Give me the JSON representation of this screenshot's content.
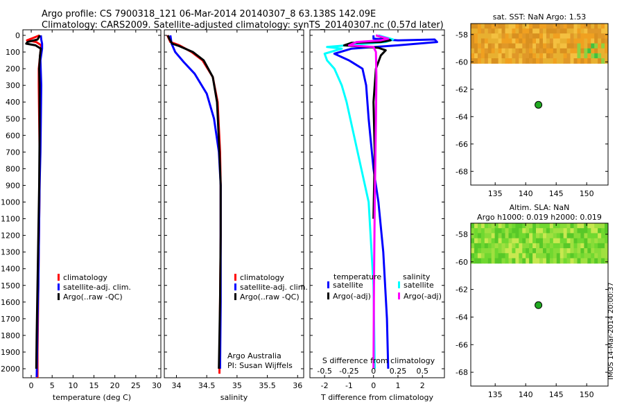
{
  "header": {
    "line1": "Argo profile: CS 7900318_121 06-Mar-2014 20140307_8 63.138S 142.09E",
    "line2": "Climatology: CARS2009. Satellite-adjusted climatology: synTS_20140307.nc (0.57d later)"
  },
  "side_label": "IMOS 14-Mar-2014 20:00:37",
  "colors": {
    "climatology": "#ff0000",
    "satellite": "#0000ff",
    "argo": "#000000",
    "satellite_salinity": "#00ffff",
    "argo_salinity": "#ff00ff",
    "sst_map": "#e0a020",
    "sla_map": "#70d830",
    "marker": "#22aa22"
  },
  "chart_data": [
    {
      "type": "line",
      "id": "temperature",
      "xlabel": "temperature (deg C)",
      "xlim": [
        -2,
        31
      ],
      "xticks": [
        0,
        5,
        10,
        15,
        20,
        25,
        30
      ],
      "ylim": [
        0,
        2080
      ],
      "yticks": [
        0,
        100,
        200,
        300,
        400,
        500,
        600,
        700,
        800,
        900,
        1000,
        1100,
        1200,
        1300,
        1400,
        1500,
        1600,
        1700,
        1800,
        1900,
        2000
      ],
      "legend": [
        "climatology",
        "satellite-adj. clim.",
        "Argo(..raw -QC)"
      ],
      "series": [
        {
          "name": "climatology",
          "color_key": "climatology",
          "points": [
            [
              1.5,
              2080
            ],
            [
              1.5,
              1900
            ],
            [
              1.6,
              1700
            ],
            [
              1.7,
              1500
            ],
            [
              1.8,
              1300
            ],
            [
              1.9,
              1100
            ],
            [
              2.0,
              900
            ],
            [
              2.0,
              700
            ],
            [
              1.9,
              500
            ],
            [
              1.8,
              300
            ],
            [
              1.8,
              200
            ],
            [
              2.2,
              100
            ],
            [
              2.4,
              60
            ],
            [
              1.2,
              40
            ],
            [
              -1.0,
              30
            ],
            [
              0.5,
              15
            ],
            [
              2.0,
              0
            ]
          ]
        },
        {
          "name": "satellite-adj. clim.",
          "color_key": "satellite",
          "points": [
            [
              1.3,
              2050
            ],
            [
              1.4,
              1900
            ],
            [
              1.5,
              1700
            ],
            [
              1.7,
              1500
            ],
            [
              1.8,
              1300
            ],
            [
              1.9,
              1100
            ],
            [
              2.0,
              900
            ],
            [
              2.2,
              700
            ],
            [
              2.3,
              500
            ],
            [
              2.4,
              300
            ],
            [
              2.2,
              150
            ],
            [
              2.6,
              80
            ],
            [
              2.6,
              50
            ],
            [
              2.4,
              25
            ],
            [
              2.3,
              0
            ]
          ]
        },
        {
          "name": "Argo(..raw -QC)",
          "color_key": "argo",
          "points": [
            [
              1.2,
              2000
            ],
            [
              1.3,
              1800
            ],
            [
              1.5,
              1500
            ],
            [
              1.7,
              1200
            ],
            [
              1.9,
              900
            ],
            [
              2.0,
              600
            ],
            [
              2.0,
              300
            ],
            [
              1.9,
              200
            ],
            [
              2.1,
              120
            ],
            [
              2.3,
              80
            ],
            [
              1.0,
              60
            ],
            [
              -1.2,
              50
            ],
            [
              -0.9,
              40
            ],
            [
              1.5,
              25
            ],
            [
              2.1,
              0
            ]
          ]
        }
      ]
    },
    {
      "type": "line",
      "id": "salinity",
      "xlabel": "salinity",
      "xlim": [
        33.8,
        36.1
      ],
      "xticks": [
        34,
        34.5,
        35,
        35.5,
        36
      ],
      "ylim": [
        0,
        2080
      ],
      "legend": [
        "climatology",
        "satellite-adj. clim.",
        "Argo(..raw -QC)"
      ],
      "annotation": [
        "Argo Australia",
        "PI: Susan Wijffels"
      ],
      "series": [
        {
          "name": "climatology",
          "color_key": "climatology",
          "points": [
            [
              34.71,
              2030
            ],
            [
              34.72,
              1600
            ],
            [
              34.73,
              1200
            ],
            [
              34.73,
              900
            ],
            [
              34.72,
              700
            ],
            [
              34.68,
              400
            ],
            [
              34.6,
              250
            ],
            [
              34.43,
              150
            ],
            [
              34.25,
              100
            ],
            [
              34.05,
              60
            ],
            [
              33.9,
              40
            ],
            [
              33.85,
              0
            ]
          ]
        },
        {
          "name": "satellite-adj. clim.",
          "color_key": "satellite",
          "points": [
            [
              34.72,
              2000
            ],
            [
              34.73,
              1600
            ],
            [
              34.73,
              1200
            ],
            [
              34.73,
              900
            ],
            [
              34.7,
              700
            ],
            [
              34.62,
              500
            ],
            [
              34.5,
              350
            ],
            [
              34.3,
              230
            ],
            [
              34.12,
              160
            ],
            [
              33.98,
              100
            ],
            [
              33.92,
              50
            ],
            [
              33.9,
              0
            ]
          ]
        },
        {
          "name": "Argo(..raw -QC)",
          "color_key": "argo",
          "points": [
            [
              34.7,
              2000
            ],
            [
              34.72,
              1600
            ],
            [
              34.73,
              1200
            ],
            [
              34.73,
              900
            ],
            [
              34.71,
              700
            ],
            [
              34.67,
              400
            ],
            [
              34.6,
              250
            ],
            [
              34.45,
              150
            ],
            [
              34.27,
              100
            ],
            [
              34.05,
              65
            ],
            [
              33.93,
              50
            ],
            [
              33.88,
              20
            ],
            [
              33.86,
              0
            ]
          ]
        }
      ]
    },
    {
      "type": "line",
      "id": "differences",
      "xlabel": "T difference from climatology",
      "xlabel_top": "S difference from climatology",
      "xlim": [
        -2.6,
        2.9
      ],
      "xticks": [
        -2,
        -1,
        0,
        1,
        2
      ],
      "xticks_top": [
        "-0.5",
        "-0.25",
        "0",
        "0.25",
        "0.5"
      ],
      "ylim": [
        0,
        2080
      ],
      "legend_title_left": "temperature",
      "legend_title_right": "salinity",
      "legend": [
        "satellite",
        "Argo(-adj)",
        "satellite",
        "Argo(-adj)"
      ],
      "series": [
        {
          "name": "satellite",
          "group": "temperature",
          "color_key": "satellite",
          "points": [
            [
              0.6,
              2000
            ],
            [
              0.55,
              1700
            ],
            [
              0.4,
              1300
            ],
            [
              0.2,
              1000
            ],
            [
              0.0,
              800
            ],
            [
              -0.2,
              500
            ],
            [
              -0.3,
              300
            ],
            [
              -0.45,
              200
            ],
            [
              -1.0,
              150
            ],
            [
              -1.6,
              110
            ],
            [
              -0.9,
              80
            ],
            [
              1.0,
              60
            ],
            [
              2.6,
              40
            ],
            [
              2.5,
              25
            ],
            [
              1.0,
              30
            ],
            [
              0.0,
              20
            ],
            [
              0.0,
              0
            ]
          ]
        },
        {
          "name": "satellite",
          "group": "salinity",
          "color_key": "satellite_salinity",
          "points": [
            [
              0.05,
              2000
            ],
            [
              0.0,
              1500
            ],
            [
              -0.2,
              1000
            ],
            [
              -0.5,
              800
            ],
            [
              -0.8,
              600
            ],
            [
              -1.1,
              400
            ],
            [
              -1.3,
              300
            ],
            [
              -1.6,
              200
            ],
            [
              -1.9,
              150
            ],
            [
              -2.0,
              110
            ],
            [
              -1.3,
              80
            ],
            [
              -1.9,
              70
            ],
            [
              0.5,
              40
            ],
            [
              0.8,
              25
            ],
            [
              0.2,
              0
            ]
          ]
        },
        {
          "name": "Argo(-adj)",
          "group": "temperature",
          "color_key": "argo",
          "points": [
            [
              0.0,
              1100
            ],
            [
              0.05,
              700
            ],
            [
              0.0,
              400
            ],
            [
              0.1,
              200
            ],
            [
              0.3,
              120
            ],
            [
              0.5,
              90
            ],
            [
              0.2,
              75
            ],
            [
              -1.2,
              60
            ],
            [
              -0.9,
              45
            ],
            [
              0.3,
              40
            ],
            [
              0.7,
              30
            ],
            [
              0.1,
              0
            ]
          ]
        },
        {
          "name": "Argo(-adj)",
          "group": "salinity",
          "color_key": "argo_salinity",
          "points": [
            [
              0.0,
              2000
            ],
            [
              0.02,
              1500
            ],
            [
              0.05,
              1000
            ],
            [
              0.1,
              500
            ],
            [
              0.12,
              250
            ],
            [
              0.1,
              100
            ],
            [
              0.0,
              70
            ],
            [
              -1.0,
              60
            ],
            [
              -0.7,
              40
            ],
            [
              0.3,
              30
            ],
            [
              0.6,
              20
            ],
            [
              0.1,
              0
            ]
          ]
        }
      ]
    },
    {
      "type": "heatmap",
      "id": "sst_map",
      "title": "sat. SST: NaN Argo: 1.53",
      "xlim": [
        131,
        153.5
      ],
      "ylim": [
        -69,
        -57.2
      ],
      "xticks": [
        135,
        140,
        145,
        150
      ],
      "yticks": [
        -58,
        -60,
        -62,
        -64,
        -66,
        -68
      ],
      "data_extent_lat": [
        -60.1,
        -57.2
      ],
      "marker": {
        "lon": 142.09,
        "lat": -63.138
      }
    },
    {
      "type": "heatmap",
      "id": "sla_map",
      "title": "Altim. SLA: NaN",
      "subtitle": "Argo h1000: 0.019 h2000: 0.019",
      "xlim": [
        131,
        153.5
      ],
      "ylim": [
        -69,
        -57.2
      ],
      "xticks": [
        135,
        140,
        145,
        150
      ],
      "yticks": [
        -58,
        -60,
        -62,
        -64,
        -66,
        -68
      ],
      "data_extent_lat": [
        -60.1,
        -57.2
      ],
      "marker": {
        "lon": 142.09,
        "lat": -63.138
      }
    }
  ]
}
